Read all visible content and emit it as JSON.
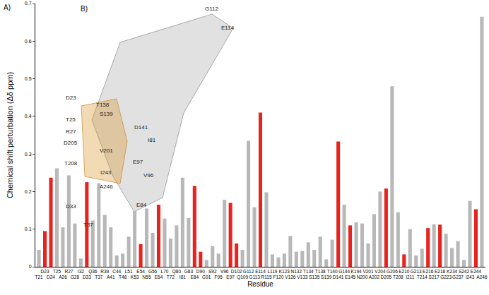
{
  "chart_data": {
    "type": "bar",
    "xlabel": "Residue",
    "ylabel": "Chemical shift perturbation (Δδ ppm)",
    "categories": [
      "T21",
      "D23",
      "D24",
      "T25",
      "A26",
      "R27",
      "G28",
      "I32",
      "D33",
      "Q36",
      "T37",
      "R39",
      "A41",
      "C44",
      "T48",
      "L51",
      "K53",
      "E54",
      "N55",
      "G56",
      "E64",
      "L70",
      "T72",
      "Q80",
      "I81",
      "G83",
      "E84",
      "D90",
      "G91",
      "S92",
      "F95",
      "V96",
      "E97",
      "D102",
      "Q109",
      "G112",
      "G113",
      "E114",
      "R115",
      "L119",
      "F120",
      "K123",
      "V126",
      "N132",
      "V133",
      "T134",
      "S135",
      "T138",
      "S139",
      "T140",
      "D141",
      "G144",
      "E145",
      "K194",
      "N200",
      "V201",
      "A202",
      "V204",
      "D205",
      "G206",
      "T208",
      "E210",
      "I211",
      "G213",
      "T214",
      "E216",
      "S217",
      "E218",
      "G223",
      "K234",
      "G237",
      "S242",
      "I243",
      "E244",
      "A246"
    ],
    "values": [
      0.045,
      0.095,
      0.237,
      0.262,
      0.105,
      0.243,
      0.115,
      0.022,
      0.225,
      0.123,
      0.222,
      0.138,
      0.105,
      0.03,
      0.035,
      0.08,
      0.148,
      0.06,
      0.155,
      0.09,
      0.165,
      0.128,
      0.075,
      0.11,
      0.237,
      0.13,
      0.215,
      0.04,
      0.018,
      0.055,
      0.035,
      0.178,
      0.17,
      0.062,
      0.045,
      0.335,
      0.158,
      0.41,
      0.198,
      0.033,
      0.025,
      0.035,
      0.082,
      0.04,
      0.042,
      0.065,
      0.045,
      0.08,
      0.02,
      0.072,
      0.333,
      0.165,
      0.11,
      0.118,
      0.115,
      0.062,
      0.14,
      0.2,
      0.208,
      0.48,
      0.145,
      0.033,
      0.1,
      0.03,
      0.048,
      0.103,
      0.113,
      0.112,
      0.088,
      0.05,
      0.068,
      0.018,
      0.175,
      0.153,
      0.665
    ],
    "colors": [
      "#b8b8b8",
      "#e8231e",
      "#e8231e",
      "#b8b8b8",
      "#b8b8b8",
      "#b8b8b8",
      "#b8b8b8",
      "#b8b8b8",
      "#e8231e",
      "#b8b8b8",
      "#b8b8b8",
      "#b8b8b8",
      "#b8b8b8",
      "#b8b8b8",
      "#b8b8b8",
      "#b8b8b8",
      "#b8b8b8",
      "#e8231e",
      "#b8b8b8",
      "#b8b8b8",
      "#e8231e",
      "#b8b8b8",
      "#b8b8b8",
      "#b8b8b8",
      "#b8b8b8",
      "#b8b8b8",
      "#e8231e",
      "#e8231e",
      "#b8b8b8",
      "#b8b8b8",
      "#b8b8b8",
      "#b8b8b8",
      "#e8231e",
      "#e8231e",
      "#b8b8b8",
      "#b8b8b8",
      "#b8b8b8",
      "#e8231e",
      "#b8b8b8",
      "#b8b8b8",
      "#b8b8b8",
      "#b8b8b8",
      "#b8b8b8",
      "#b8b8b8",
      "#b8b8b8",
      "#b8b8b8",
      "#b8b8b8",
      "#b8b8b8",
      "#b8b8b8",
      "#b8b8b8",
      "#e8231e",
      "#b8b8b8",
      "#e8231e",
      "#b8b8b8",
      "#b8b8b8",
      "#b8b8b8",
      "#b8b8b8",
      "#b8b8b8",
      "#e8231e",
      "#b8b8b8",
      "#b8b8b8",
      "#e8231e",
      "#b8b8b8",
      "#b8b8b8",
      "#b8b8b8",
      "#e8231e",
      "#b8b8b8",
      "#e8231e",
      "#b8b8b8",
      "#b8b8b8",
      "#b8b8b8",
      "#b8b8b8",
      "#b8b8b8",
      "#e8231e",
      "#b8b8b8"
    ],
    "ylim": [
      0,
      0.7
    ],
    "yticks": [
      0,
      0.1,
      0.2,
      0.3,
      0.4,
      0.5,
      0.6,
      0.7
    ],
    "grid": false,
    "panel_labels": [
      "A)",
      "B)"
    ],
    "inset_labels": [
      "G112",
      "E114",
      "D23",
      "T138",
      "T25",
      "S139",
      "R27",
      "D205",
      "V201",
      "T208",
      "I243",
      "A246",
      "D33",
      "T37",
      "D141",
      "I81",
      "E97",
      "V96",
      "E84"
    ]
  }
}
